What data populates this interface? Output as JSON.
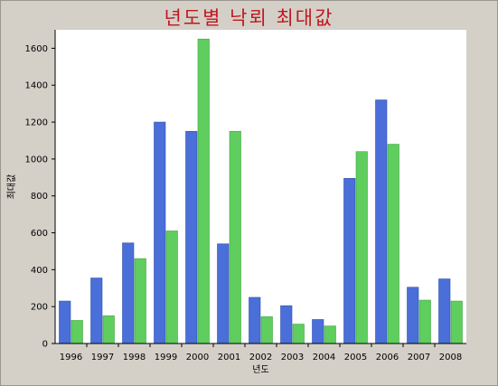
{
  "chart_data": {
    "type": "bar",
    "title": "년도별 낙뢰 최대값",
    "xlabel": "년도",
    "ylabel": "최대값",
    "categories": [
      "1996",
      "1997",
      "1998",
      "1999",
      "2000",
      "2001",
      "2002",
      "2003",
      "2004",
      "2005",
      "2006",
      "2007",
      "2008"
    ],
    "series": [
      {
        "values": [
          230,
          355,
          545,
          1200,
          1150,
          540,
          250,
          205,
          130,
          895,
          1320,
          305,
          350
        ],
        "color": "#4a6fd8"
      },
      {
        "values": [
          125,
          150,
          460,
          610,
          1650,
          1150,
          145,
          105,
          95,
          1040,
          1080,
          235,
          230
        ],
        "color": "#5fce5f"
      }
    ],
    "ylim": [
      0,
      1700
    ],
    "yticks": [
      0,
      200,
      400,
      600,
      800,
      1000,
      1200,
      1400,
      1600
    ],
    "grid": false,
    "colors": {
      "frame": "#d4d0c8",
      "plot": "#ffffff",
      "title": "#c0181f"
    }
  }
}
